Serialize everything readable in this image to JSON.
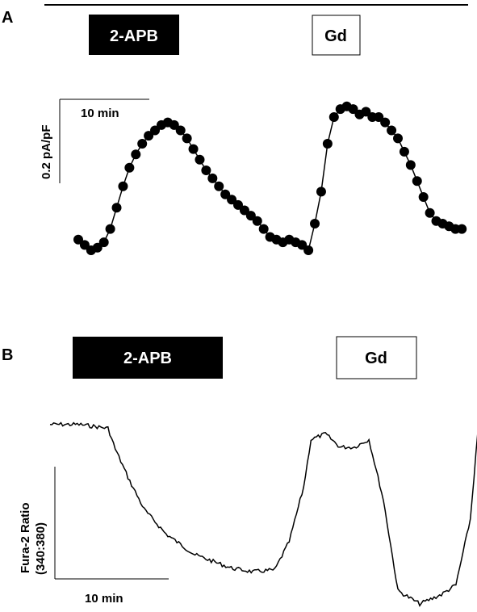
{
  "panels": [
    {
      "letter": "A",
      "treatments": [
        {
          "label": "2-APB",
          "style": "filled"
        },
        {
          "label": "Gd",
          "style": "outline"
        }
      ],
      "scale": {
        "time_label": "10 min",
        "y_label": "0.2 pA/pF"
      }
    },
    {
      "letter": "B",
      "treatments": [
        {
          "label": "2-APB",
          "style": "filled"
        },
        {
          "label": "Gd",
          "style": "outline"
        }
      ],
      "scale": {
        "time_label": "10 min",
        "y_label": "Fura-2 Ratio",
        "y_label_line2": "(340:380)"
      }
    }
  ],
  "colors": {
    "trace": "#000000",
    "filled_box": "#000000",
    "background": "#ffffff"
  },
  "chart_data": [
    {
      "type": "scatter",
      "panel": "A",
      "series": [
        {
          "x": [
            0,
            1,
            2,
            3,
            4,
            5,
            6,
            7,
            8,
            9,
            10,
            11,
            12,
            13,
            14,
            15,
            16,
            17,
            18,
            19,
            20,
            21,
            22,
            23,
            24,
            25,
            26,
            27,
            28,
            29,
            30,
            31,
            32,
            33,
            34,
            35,
            36,
            37,
            38,
            39,
            40,
            41,
            42,
            43,
            44,
            45,
            46,
            47,
            48,
            49,
            50,
            51,
            52,
            53,
            54,
            55,
            56,
            57,
            58,
            59,
            60
          ],
          "y": [
            0.04,
            0.02,
            0.0,
            0.01,
            0.03,
            0.08,
            0.16,
            0.24,
            0.31,
            0.36,
            0.4,
            0.43,
            0.45,
            0.47,
            0.48,
            0.47,
            0.45,
            0.42,
            0.38,
            0.34,
            0.3,
            0.27,
            0.24,
            0.21,
            0.19,
            0.17,
            0.15,
            0.13,
            0.11,
            0.08,
            0.05,
            0.04,
            0.03,
            0.04,
            0.03,
            0.02,
            0.0,
            0.1,
            0.22,
            0.4,
            0.5,
            0.53,
            0.54,
            0.53,
            0.51,
            0.52,
            0.5,
            0.5,
            0.48,
            0.45,
            0.42,
            0.37,
            0.32,
            0.26,
            0.2,
            0.14,
            0.11,
            0.1,
            0.09,
            0.08,
            0.08
          ]
        }
      ]
    },
    {
      "type": "line",
      "panel": "B",
      "series": [
        {
          "x": [
            0,
            4,
            8,
            9,
            11,
            13,
            16,
            20,
            25,
            28,
            31,
            33,
            35,
            36,
            38,
            40,
            42,
            43,
            44,
            46,
            48,
            51,
            54,
            56,
            58,
            59
          ],
          "y": [
            0.95,
            0.95,
            0.93,
            0.82,
            0.65,
            0.5,
            0.37,
            0.26,
            0.19,
            0.17,
            0.18,
            0.33,
            0.62,
            0.87,
            0.9,
            0.83,
            0.83,
            0.85,
            0.87,
            0.55,
            0.07,
            0.0,
            0.05,
            0.1,
            0.45,
            0.9
          ]
        }
      ]
    }
  ]
}
